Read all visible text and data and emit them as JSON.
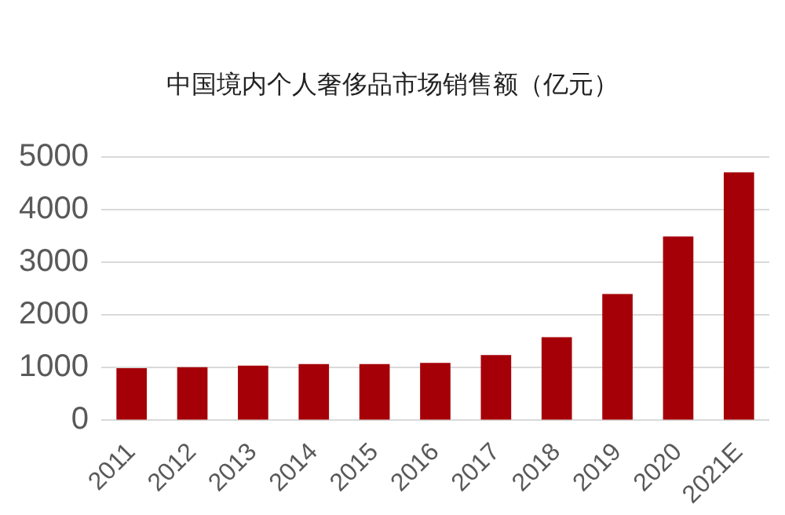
{
  "chart_data": {
    "type": "bar",
    "title": "中国境内个人奢侈品市场销售额（亿元）",
    "categories": [
      "2011",
      "2012",
      "2013",
      "2014",
      "2015",
      "2016",
      "2017",
      "2018",
      "2019",
      "2020",
      "2021E"
    ],
    "values": [
      990,
      1010,
      1040,
      1070,
      1070,
      1090,
      1240,
      1580,
      2400,
      3490,
      4710
    ],
    "color": "#a50008",
    "ylim": [
      0,
      5000
    ],
    "yticks": [
      0,
      1000,
      2000,
      3000,
      4000,
      5000
    ],
    "grid": "y",
    "legend": false
  }
}
